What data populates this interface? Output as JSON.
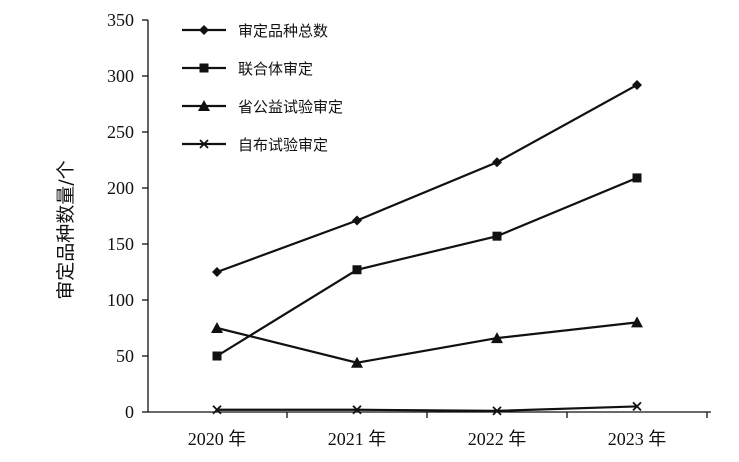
{
  "chart_data": {
    "type": "line",
    "title": "",
    "xlabel": "",
    "ylabel": "审定品种数量/个",
    "categories": [
      "2020 年",
      "2021 年",
      "2022 年",
      "2023 年"
    ],
    "ylim": [
      0,
      350
    ],
    "yticks": [
      0,
      50,
      100,
      150,
      200,
      250,
      300,
      350
    ],
    "grid": false,
    "legend_position": "top-left",
    "series": [
      {
        "name": "审定品种总数",
        "marker": "diamond",
        "values": [
          125,
          171,
          223,
          292
        ]
      },
      {
        "name": "联合体审定",
        "marker": "square",
        "values": [
          50,
          127,
          157,
          209
        ]
      },
      {
        "name": "省公益试验审定",
        "marker": "triangle",
        "values": [
          75,
          44,
          66,
          80
        ]
      },
      {
        "name": "自布试验审定",
        "marker": "x",
        "values": [
          2,
          2,
          1,
          5
        ]
      }
    ],
    "colors": {
      "line": "#111111",
      "background": "#ffffff"
    }
  }
}
